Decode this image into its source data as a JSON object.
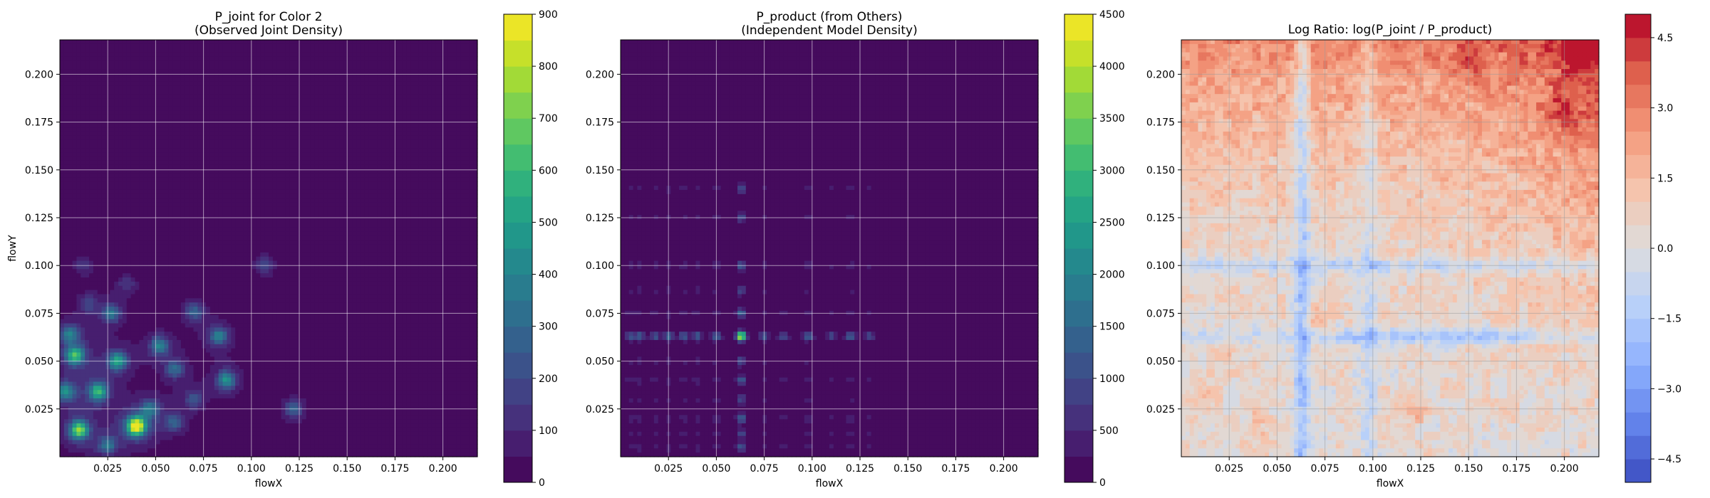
{
  "chart_data": [
    {
      "type": "heatmap",
      "title_line1": "P_joint for Color 2",
      "title_line2": "(Observed Joint Density)",
      "xlabel": "flowX",
      "ylabel": "flowY",
      "xlim": [
        0.0,
        0.218
      ],
      "ylim": [
        0.0,
        0.218
      ],
      "xticks": [
        "0.025",
        "0.050",
        "0.075",
        "0.100",
        "0.125",
        "0.150",
        "0.175",
        "0.200"
      ],
      "yticks": [
        "0.025",
        "0.050",
        "0.075",
        "0.100",
        "0.125",
        "0.150",
        "0.175",
        "0.200"
      ],
      "grid": true,
      "colormap": "viridis",
      "colorbar": {
        "range": [
          0,
          900
        ],
        "levels": 18,
        "ticks": [
          "0",
          "100",
          "200",
          "300",
          "400",
          "500",
          "600",
          "700",
          "800",
          "900"
        ]
      },
      "hotspots": [
        {
          "x": 0.04,
          "y": 0.016,
          "value": 860
        },
        {
          "x": 0.01,
          "y": 0.014,
          "value": 620
        },
        {
          "x": 0.02,
          "y": 0.034,
          "value": 500
        },
        {
          "x": 0.003,
          "y": 0.034,
          "value": 380
        },
        {
          "x": 0.008,
          "y": 0.053,
          "value": 520
        },
        {
          "x": 0.005,
          "y": 0.064,
          "value": 300
        },
        {
          "x": 0.03,
          "y": 0.05,
          "value": 450
        },
        {
          "x": 0.027,
          "y": 0.075,
          "value": 280
        },
        {
          "x": 0.052,
          "y": 0.058,
          "value": 330
        },
        {
          "x": 0.06,
          "y": 0.046,
          "value": 250
        },
        {
          "x": 0.07,
          "y": 0.076,
          "value": 230
        },
        {
          "x": 0.083,
          "y": 0.063,
          "value": 330
        },
        {
          "x": 0.087,
          "y": 0.04,
          "value": 380
        },
        {
          "x": 0.047,
          "y": 0.025,
          "value": 260
        },
        {
          "x": 0.06,
          "y": 0.018,
          "value": 220
        },
        {
          "x": 0.025,
          "y": 0.006,
          "value": 280
        },
        {
          "x": 0.122,
          "y": 0.025,
          "value": 230
        },
        {
          "x": 0.107,
          "y": 0.1,
          "value": 150
        },
        {
          "x": 0.012,
          "y": 0.1,
          "value": 110
        },
        {
          "x": 0.035,
          "y": 0.09,
          "value": 120
        },
        {
          "x": 0.07,
          "y": 0.03,
          "value": 180
        },
        {
          "x": 0.015,
          "y": 0.08,
          "value": 150
        }
      ]
    },
    {
      "type": "heatmap",
      "title_line1": "P_product (from Others)",
      "title_line2": "(Independent Model Density)",
      "xlabel": "flowX",
      "ylabel": "",
      "xlim": [
        0.0,
        0.218
      ],
      "ylim": [
        0.0,
        0.218
      ],
      "xticks": [
        "0.025",
        "0.050",
        "0.075",
        "0.100",
        "0.125",
        "0.150",
        "0.175",
        "0.200"
      ],
      "yticks": [
        "0.025",
        "0.050",
        "0.075",
        "0.100",
        "0.125",
        "0.150",
        "0.175",
        "0.200"
      ],
      "grid": true,
      "colormap": "viridis",
      "colorbar": {
        "range": [
          0,
          4500
        ],
        "levels": 18,
        "ticks": [
          "0",
          "500",
          "1000",
          "1500",
          "2000",
          "2500",
          "3000",
          "3500",
          "4000",
          "4500"
        ]
      },
      "peak": {
        "x": 0.0635,
        "y": 0.0635,
        "value": 4400
      },
      "hot_x_positions": [
        0.005,
        0.01,
        0.018,
        0.025,
        0.033,
        0.04,
        0.05,
        0.063,
        0.075,
        0.085,
        0.098,
        0.11,
        0.12,
        0.13
      ],
      "hot_y_positions": [
        0.005,
        0.012,
        0.02,
        0.03,
        0.04,
        0.05,
        0.063,
        0.075,
        0.087,
        0.1,
        0.125,
        0.14
      ]
    },
    {
      "type": "heatmap",
      "title_line1": "Log Ratio: log(P_joint / P_product)",
      "title_line2": "",
      "xlabel": "flowX",
      "ylabel": "",
      "xlim": [
        0.0,
        0.218
      ],
      "ylim": [
        0.0,
        0.218
      ],
      "xticks": [
        "0.025",
        "0.050",
        "0.075",
        "0.100",
        "0.125",
        "0.150",
        "0.175",
        "0.200"
      ],
      "yticks": [
        "0.025",
        "0.050",
        "0.075",
        "0.100",
        "0.125",
        "0.150",
        "0.175",
        "0.200"
      ],
      "grid": true,
      "colormap": "coolwarm",
      "colorbar": {
        "range": [
          -5,
          5
        ],
        "levels": 20,
        "ticks": [
          "−4.5",
          "−3.0",
          "−1.5",
          "0.0",
          "1.5",
          "3.0",
          "4.5"
        ]
      },
      "cold_bands": [
        {
          "axis": "x",
          "at": 0.063,
          "value": -2.2
        },
        {
          "axis": "y",
          "at": 0.063,
          "value": -2.0
        },
        {
          "axis": "y",
          "at": 0.1,
          "value": -1.4
        },
        {
          "axis": "x",
          "at": 0.098,
          "value": -1.2
        }
      ],
      "warm_regions": [
        {
          "x": 0.207,
          "y": 0.21,
          "value": 4.6
        },
        {
          "x": 0.2,
          "y": 0.18,
          "value": 3.0
        },
        {
          "x": 0.15,
          "y": 0.205,
          "value": 2.4
        },
        {
          "x": 0.12,
          "y": 0.025,
          "value": 2.6
        },
        {
          "x": 0.072,
          "y": 0.073,
          "value": 2.2
        },
        {
          "x": 0.025,
          "y": 0.048,
          "value": 1.8
        },
        {
          "x": 0.01,
          "y": 0.03,
          "value": 1.8
        },
        {
          "x": 0.04,
          "y": 0.015,
          "value": 1.6
        }
      ]
    }
  ]
}
